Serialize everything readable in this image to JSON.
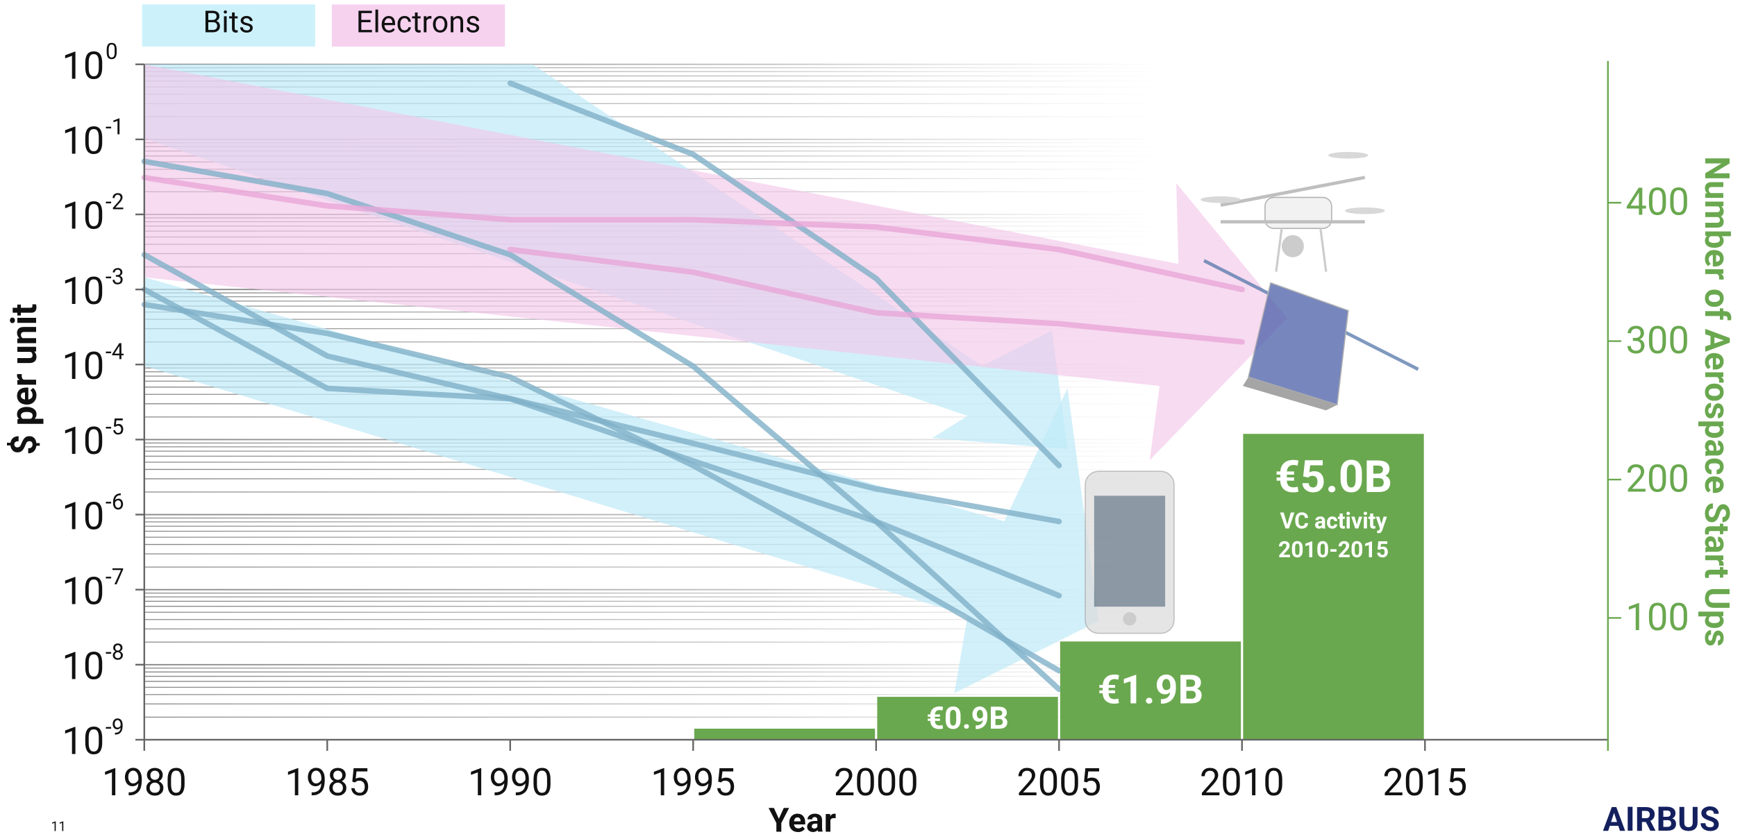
{
  "chart_data": {
    "type": "line",
    "xlabel": "Year",
    "ylabel": "$ per unit",
    "y2label": "Number of Aerospace Start Ups",
    "xlim": [
      1980,
      2020
    ],
    "xticks": [
      1980,
      1985,
      1990,
      1995,
      2000,
      2005,
      2010,
      2015
    ],
    "ylim": [
      1e-09,
      1
    ],
    "log_y": true,
    "yticks": [
      {
        "value": 1,
        "label": "10",
        "exponent": "0"
      },
      {
        "value": 0.1,
        "label": "10",
        "exponent": "-1"
      },
      {
        "value": 0.01,
        "label": "10",
        "exponent": "-2"
      },
      {
        "value": 0.001,
        "label": "10",
        "exponent": "-3"
      },
      {
        "value": 0.0001,
        "label": "10",
        "exponent": "-4"
      },
      {
        "value": 1e-05,
        "label": "10",
        "exponent": "-5"
      },
      {
        "value": 1e-06,
        "label": "10",
        "exponent": "-6"
      },
      {
        "value": 1e-07,
        "label": "10",
        "exponent": "-7"
      },
      {
        "value": 1e-08,
        "label": "10",
        "exponent": "-8"
      },
      {
        "value": 1e-09,
        "label": "10",
        "exponent": "-9"
      }
    ],
    "grid": true,
    "minor_grid": true,
    "y2lim": [
      12,
      500
    ],
    "y2ticks": [
      100,
      200,
      300,
      400
    ],
    "y2color": "#6aa84f",
    "groups": [
      {
        "name": "Bits",
        "color": "#cdf1fb",
        "line_color": "#7fb0c8",
        "series": [
          {
            "x": [
              1990,
              1995,
              2000,
              2005
            ],
            "values": [
              0.56,
              0.063,
              0.0014,
              4.5e-06
            ]
          },
          {
            "x": [
              1980,
              1985,
              1990,
              1995,
              2000,
              2005
            ],
            "values": [
              0.0029,
              0.00013,
              3.5e-05,
              8.9e-06,
              2.2e-06,
              8.1e-07
            ]
          },
          {
            "x": [
              1980,
              1985,
              1990,
              1995,
              2000,
              2005
            ],
            "values": [
              0.001,
              4.8e-05,
              3.5e-05,
              5.2e-06,
              8.1e-07,
              8.3e-08
            ]
          },
          {
            "x": [
              1980,
              1985,
              1990,
              1995,
              2000,
              2005
            ],
            "values": [
              0.00063,
              0.00026,
              6.8e-05,
              4.5e-06,
              2.1e-07,
              8.3e-09
            ]
          },
          {
            "x": [
              1980,
              1985,
              1990,
              1995,
              2000,
              2005
            ],
            "values": [
              0.051,
              0.019,
              0.0029,
              9.5e-05,
              8.1e-07,
              4.7e-09
            ]
          }
        ]
      },
      {
        "name": "Electrons",
        "color": "#f6d2ef",
        "line_color": "#e9a6d8",
        "series": [
          {
            "x": [
              1980,
              1985,
              1990,
              1995,
              2000,
              2005,
              2010
            ],
            "values": [
              0.031,
              0.013,
              0.0085,
              0.0085,
              0.0068,
              0.0034,
              0.001
            ]
          },
          {
            "x": [
              1990,
              1995,
              2000,
              2005,
              2010
            ],
            "values": [
              0.0034,
              0.0017,
              0.00049,
              0.00035,
              0.0002
            ]
          }
        ]
      }
    ],
    "bars": {
      "axis": "y2",
      "color": "#6aa84f",
      "bins": [
        1995,
        2000,
        2005,
        2010,
        2015
      ],
      "values": [
        20,
        43,
        83,
        233
      ],
      "bar_labels": [
        null,
        "€0.9B",
        "€1.9B",
        "€5.0B"
      ],
      "note": [
        "VC activity",
        "2010-2015"
      ]
    }
  },
  "page_number": "11",
  "logo": "AIRBUS"
}
